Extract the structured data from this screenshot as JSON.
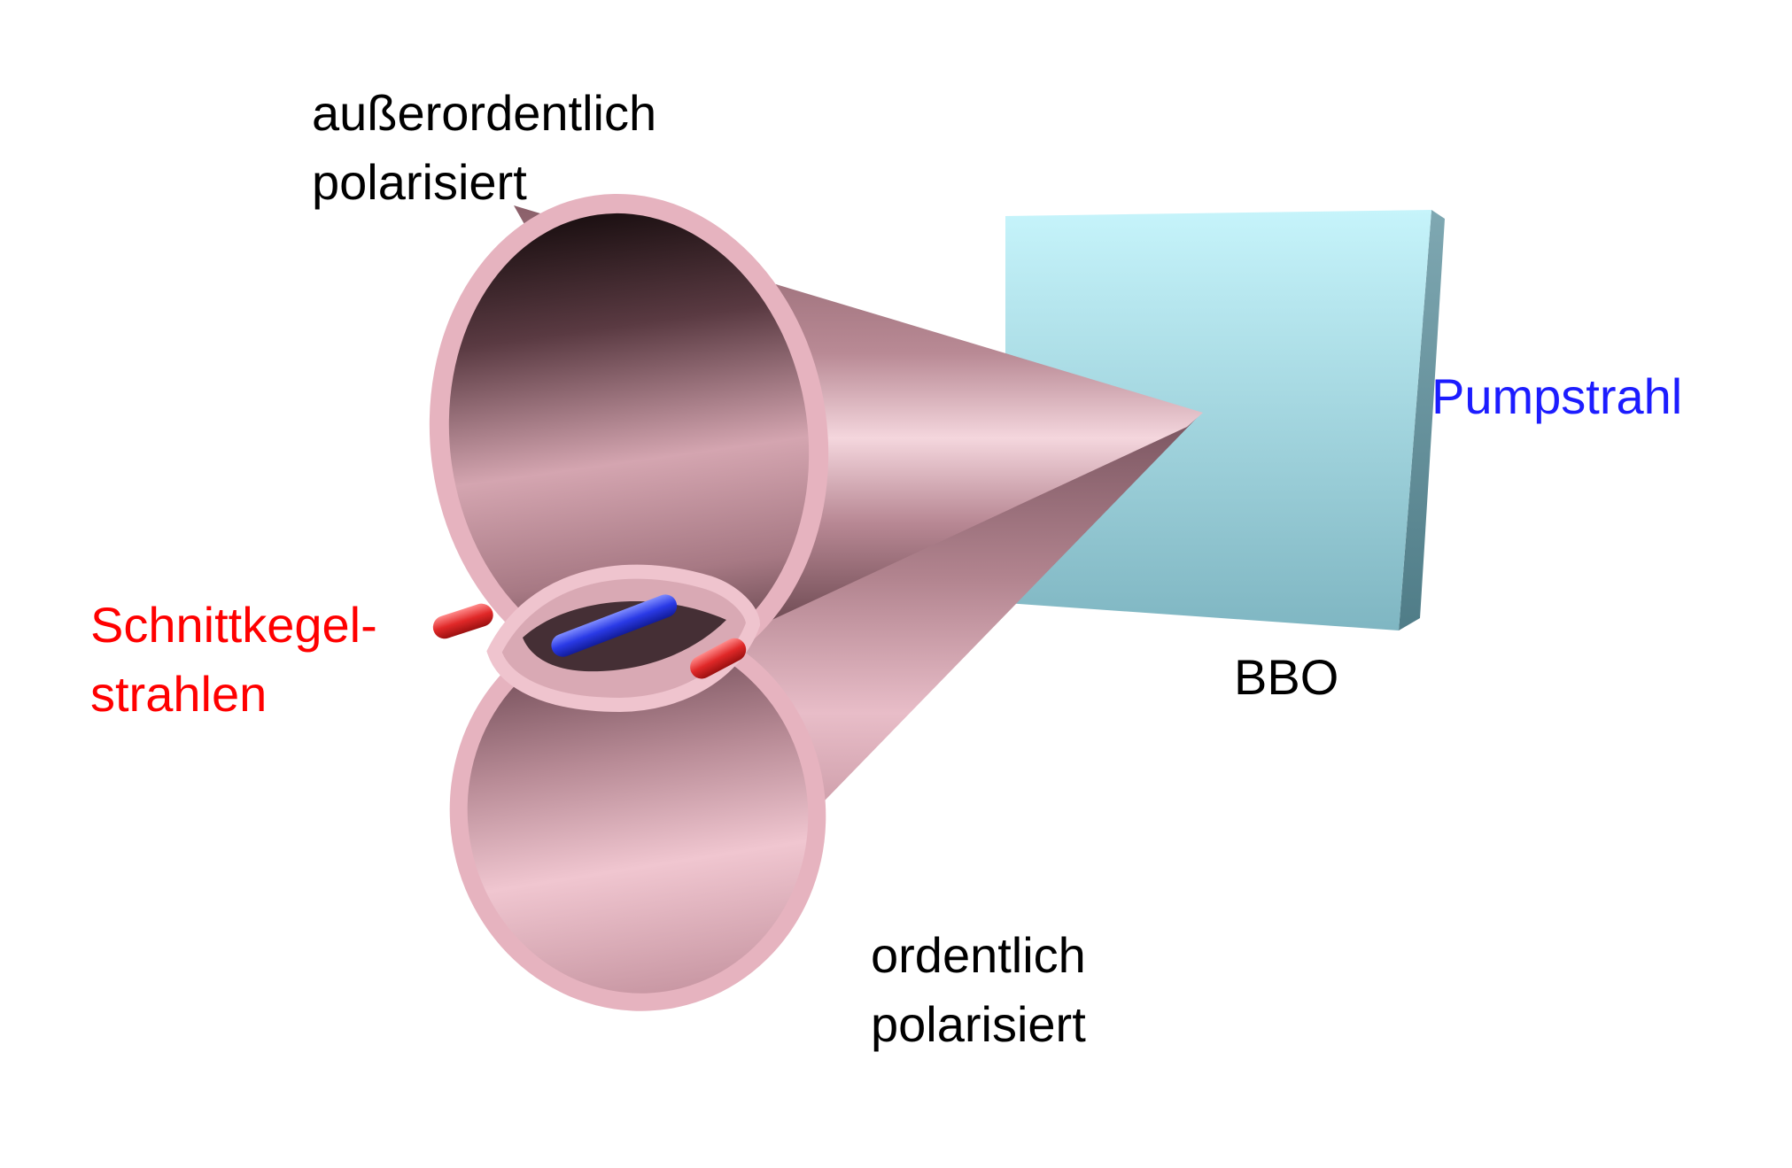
{
  "labels": {
    "extraordinary": [
      "außerordentlich",
      "polarisiert"
    ],
    "ordinary": [
      "ordentlich",
      "polarisiert"
    ],
    "intersection": [
      "Schnittkegel-",
      "strahlen"
    ],
    "crystal": "BBO",
    "pump": "Pumpstrahl"
  },
  "colors": {
    "cone_light": "#f1bcc8",
    "cone_mid": "#c48f9b",
    "cone_dark": "#3a2428",
    "crystal_front": "#a6e4f0",
    "crystal_side": "#5e8f9b",
    "pump_beam": "#6f7fc4",
    "intersection_beams": "#e02828",
    "center_beam": "#2a3ae6",
    "text_default": "#000000",
    "text_intersection": "#ff0000",
    "text_pump": "#1c1cff"
  }
}
